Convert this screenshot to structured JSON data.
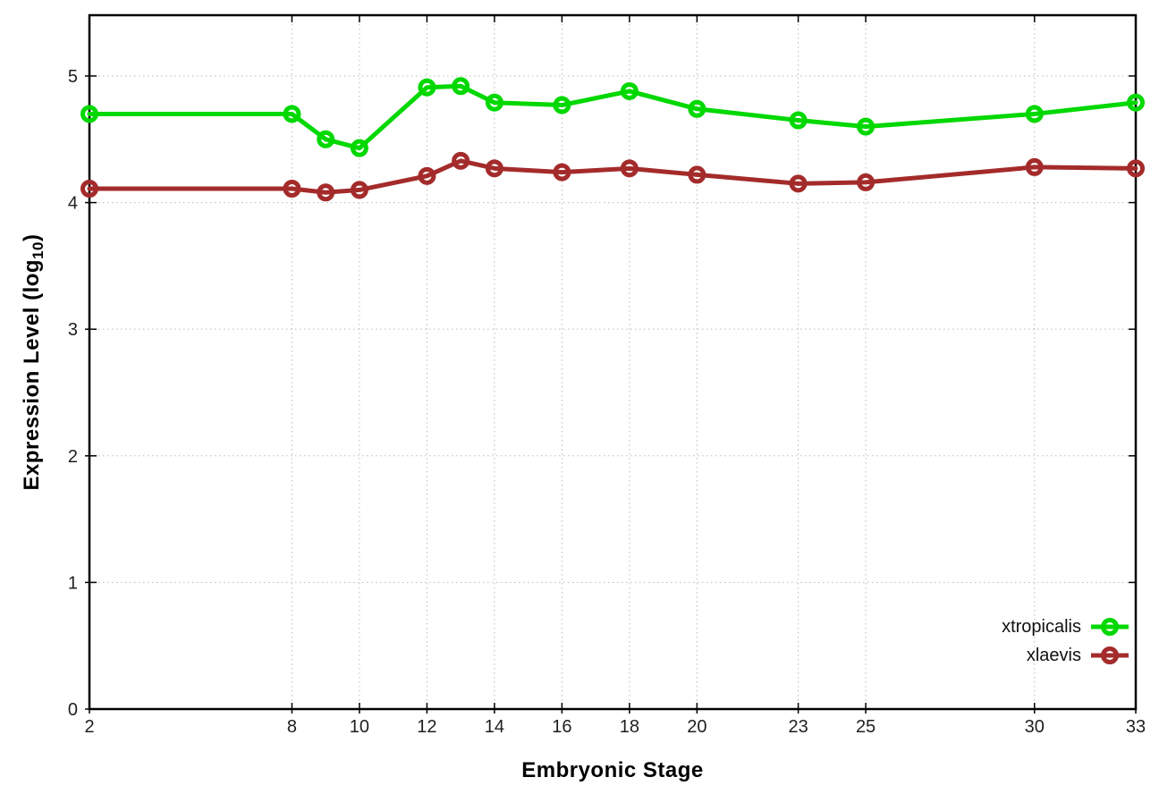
{
  "chart_data": {
    "type": "line",
    "title": "",
    "xlabel": "Embryonic Stage",
    "ylabel": "Expression Level (log10)",
    "ylabel_parts": {
      "prefix": "Expression Level (log",
      "sub": "10",
      "suffix": ")"
    },
    "x": [
      2,
      8,
      9,
      10,
      12,
      13,
      14,
      16,
      18,
      20,
      23,
      25,
      30,
      33
    ],
    "x_tick_labels": [
      2,
      8,
      10,
      12,
      14,
      16,
      18,
      20,
      23,
      25,
      30,
      33
    ],
    "y_ticks": [
      0,
      1,
      2,
      3,
      4,
      5
    ],
    "xlim": [
      2,
      33
    ],
    "ylim": [
      0,
      5.48
    ],
    "grid": true,
    "legend_position": "bottom-right",
    "series": [
      {
        "name": "xtropicalis",
        "color": "#00d800",
        "values": [
          4.7,
          4.7,
          4.5,
          4.43,
          4.91,
          4.92,
          4.79,
          4.77,
          4.88,
          4.74,
          4.65,
          4.6,
          4.7,
          4.79
        ]
      },
      {
        "name": "xlaevis",
        "color": "#a42b2b",
        "values": [
          4.11,
          4.11,
          4.08,
          4.1,
          4.21,
          4.33,
          4.27,
          4.24,
          4.27,
          4.22,
          4.15,
          4.16,
          4.28,
          4.27
        ]
      }
    ],
    "style": {
      "border_color": "#000000",
      "grid_color": "#bbbbbb",
      "tick_label_color": "#1f1f1f",
      "line_width": 5,
      "marker_radius": 7.5,
      "marker_stroke": 5
    }
  }
}
